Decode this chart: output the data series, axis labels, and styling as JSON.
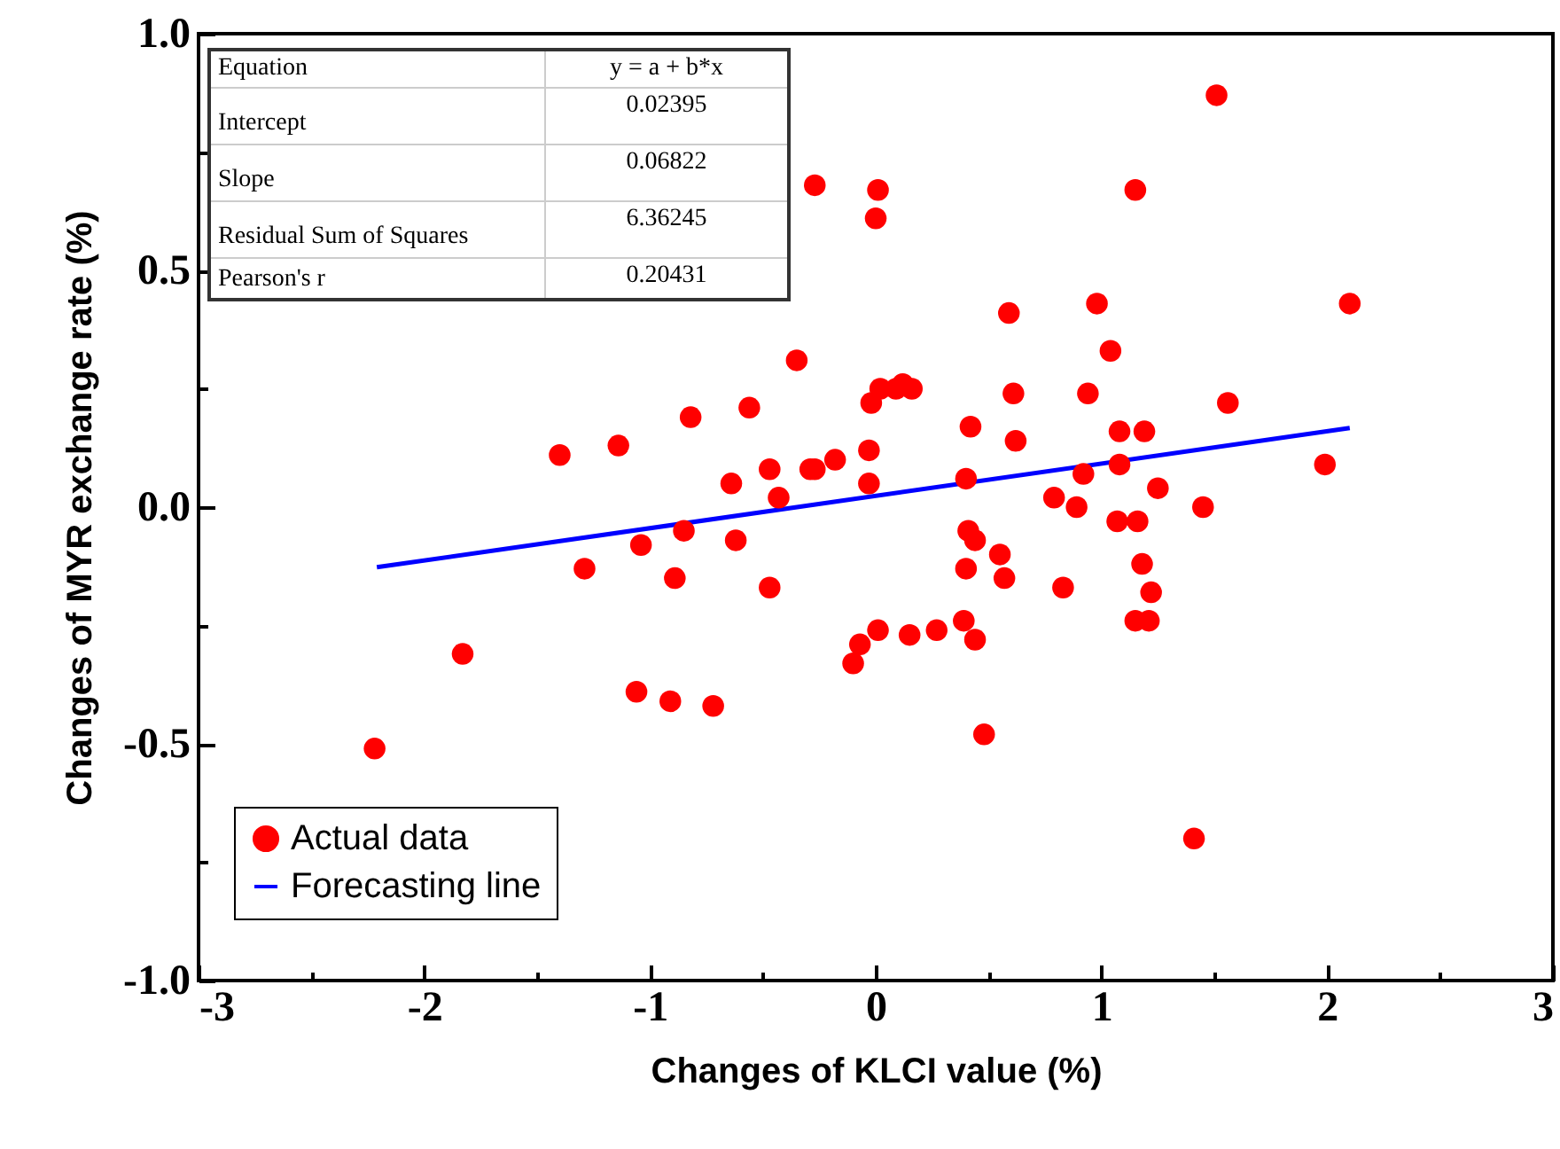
{
  "chart_data": {
    "type": "scatter",
    "xlabel": "Changes of KLCI value (%)",
    "ylabel": "Changes of MYR exchange rate (%)",
    "xlim": [
      -3,
      3
    ],
    "xticks": [
      -3,
      {
        "value": -2.5,
        "label": null
      },
      -2,
      {
        "value": -1.5,
        "label": null
      },
      -1,
      {
        "value": -0.5,
        "label": null
      },
      0,
      {
        "value": 0.5,
        "label": null
      },
      1,
      {
        "value": 1.5,
        "label": null
      },
      2,
      {
        "value": 2.5,
        "label": null
      },
      3
    ],
    "ylim": [
      -1,
      1
    ],
    "yticks": [
      {
        "value": -1,
        "label": "-1.0"
      },
      {
        "value": -0.75,
        "label": null
      },
      {
        "value": -0.5,
        "label": "-0.5"
      },
      {
        "value": -0.25,
        "label": null
      },
      {
        "value": 0,
        "label": "0.0"
      },
      {
        "value": 0.25,
        "label": null
      },
      {
        "value": 0.5,
        "label": "0.5"
      },
      {
        "value": 0.75,
        "label": null
      },
      {
        "value": 1,
        "label": "1.0"
      }
    ],
    "grid": false,
    "legend": "bottom left",
    "annotations": [
      "Equation",
      "y = a + b*x",
      "Intercept",
      "0.02395",
      "Slope",
      "0.06822",
      "Residual Sum of Squares",
      "6.36245",
      "Pearson's r",
      "0.20431"
    ],
    "series": [
      {
        "name": "Actual data",
        "marker": "circle",
        "color": "#ff0000",
        "x": [
          -2.22,
          -1.83,
          -1.4,
          -1.29,
          -1.14,
          -1.06,
          -1.04,
          -0.91,
          -0.89,
          -0.85,
          -0.82,
          -0.72,
          -0.64,
          -0.62,
          -0.56,
          -0.47,
          -0.47,
          -0.43,
          -0.35,
          -0.29,
          -0.27,
          -0.27,
          -0.18,
          -0.1,
          -0.07,
          -0.03,
          -0.03,
          -0.02,
          0.0,
          0.01,
          0.01,
          0.02,
          0.09,
          0.12,
          0.16,
          0.15,
          0.27,
          0.39,
          0.4,
          0.4,
          0.41,
          0.42,
          0.44,
          0.44,
          0.48,
          0.55,
          0.57,
          0.59,
          0.61,
          0.62,
          0.79,
          0.83,
          0.89,
          0.92,
          0.94,
          0.98,
          1.04,
          1.07,
          1.08,
          1.08,
          1.15,
          1.15,
          1.16,
          1.18,
          1.19,
          1.21,
          1.22,
          1.25,
          1.41,
          1.45,
          1.51,
          1.56,
          1.99,
          2.1
        ],
        "values": [
          -0.51,
          -0.31,
          0.11,
          -0.13,
          0.13,
          -0.39,
          -0.08,
          -0.41,
          -0.15,
          -0.05,
          0.19,
          -0.42,
          0.05,
          -0.07,
          0.21,
          0.08,
          -0.17,
          0.02,
          0.31,
          0.08,
          0.08,
          0.68,
          0.1,
          -0.33,
          -0.29,
          0.12,
          0.05,
          0.22,
          0.61,
          0.67,
          -0.26,
          0.25,
          0.25,
          0.26,
          0.25,
          -0.27,
          -0.26,
          -0.24,
          -0.13,
          0.06,
          -0.05,
          0.17,
          -0.07,
          -0.28,
          -0.48,
          -0.1,
          -0.15,
          0.41,
          0.24,
          0.14,
          0.02,
          -0.17,
          0.0,
          0.07,
          0.24,
          0.43,
          0.33,
          -0.03,
          0.09,
          0.16,
          0.67,
          -0.24,
          -0.03,
          -0.12,
          0.16,
          -0.24,
          -0.18,
          0.04,
          -0.7,
          0.0,
          0.87,
          0.22,
          0.09,
          0.43
        ]
      },
      {
        "name": "Forecasting line",
        "type": "line",
        "color": "#0000ff",
        "x": [
          -2.21,
          2.1
        ],
        "values": [
          -0.127,
          0.167
        ]
      }
    ]
  }
}
